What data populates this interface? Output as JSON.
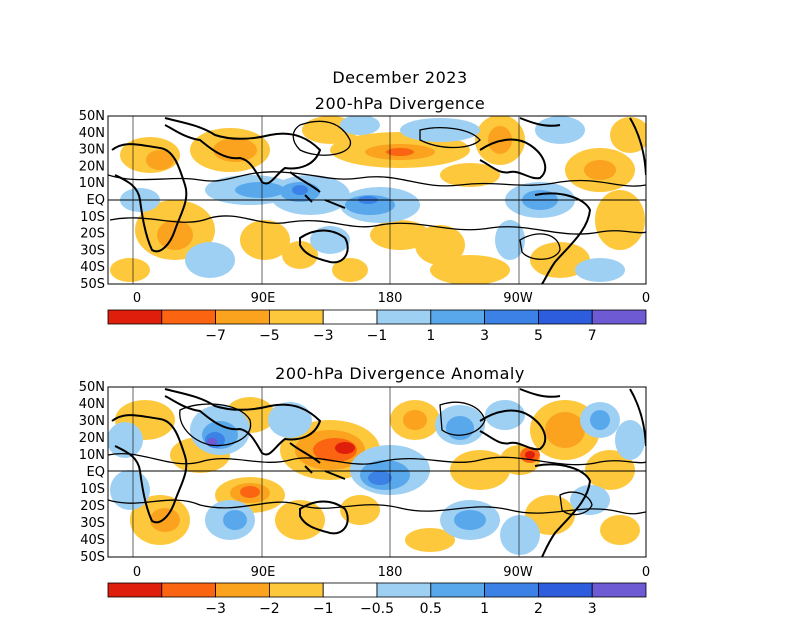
{
  "header": {
    "month_title": "December 2023"
  },
  "panels": [
    {
      "id": "div",
      "title": "200-hPa Divergence",
      "lat_labels": [
        "50N",
        "40N",
        "30N",
        "20N",
        "10N",
        "EQ",
        "10S",
        "20S",
        "30S",
        "40S",
        "50S"
      ],
      "lon_labels": [
        "0",
        "90E",
        "180",
        "90W",
        "0"
      ],
      "colorbar": {
        "colors": [
          "#e01e0c",
          "#fb6410",
          "#fba21e",
          "#fdc83c",
          "#ffffff",
          "#9ed0f4",
          "#5aa8ec",
          "#3c82e6",
          "#2d5ddc",
          "#6e5ad2"
        ],
        "labels": [
          "−7",
          "−5",
          "−3",
          "−1",
          "1",
          "3",
          "5",
          "7"
        ]
      }
    },
    {
      "id": "anom",
      "title": "200-hPa Divergence Anomaly",
      "lat_labels": [
        "50N",
        "40N",
        "30N",
        "20N",
        "10N",
        "EQ",
        "10S",
        "20S",
        "30S",
        "40S",
        "50S"
      ],
      "lon_labels": [
        "0",
        "90E",
        "180",
        "90W",
        "0"
      ],
      "colorbar": {
        "colors": [
          "#e01e0c",
          "#fb6410",
          "#fba21e",
          "#fdc83c",
          "#ffffff",
          "#9ed0f4",
          "#5aa8ec",
          "#3c82e6",
          "#2d5ddc",
          "#6e5ad2"
        ],
        "labels": [
          "−3",
          "−2",
          "−1",
          "−0.5",
          "0.5",
          "1",
          "2",
          "3"
        ]
      }
    }
  ]
}
